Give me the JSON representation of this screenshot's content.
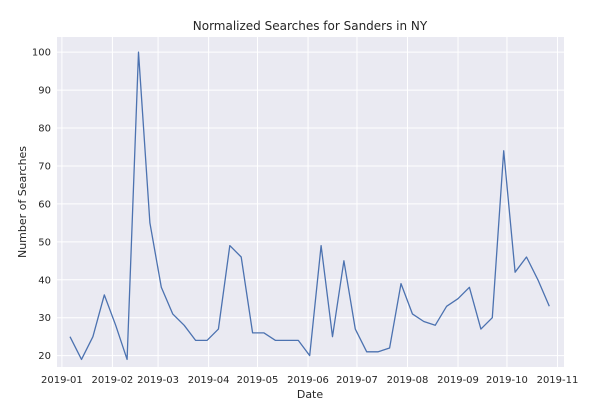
{
  "chart_data": {
    "type": "line",
    "title": "Normalized Searches for Sanders in NY",
    "xlabel": "Date",
    "ylabel": "Number of Searches",
    "ylim": [
      17,
      104
    ],
    "xlim": [
      "2018-12-29",
      "2019-11-05"
    ],
    "grid": true,
    "background": "#eaeaf2",
    "line_color": "#4c72b0",
    "y_ticks": [
      {
        "value": 20,
        "label": "20"
      },
      {
        "value": 30,
        "label": "30"
      },
      {
        "value": 40,
        "label": "40"
      },
      {
        "value": 50,
        "label": "50"
      },
      {
        "value": 60,
        "label": "60"
      },
      {
        "value": 70,
        "label": "70"
      },
      {
        "value": 80,
        "label": "80"
      },
      {
        "value": 90,
        "label": "90"
      },
      {
        "value": 100,
        "label": "100"
      }
    ],
    "x_ticks": [
      {
        "value": "2019-01-01",
        "label": "2019-01"
      },
      {
        "value": "2019-02-01",
        "label": "2019-02"
      },
      {
        "value": "2019-03-01",
        "label": "2019-03"
      },
      {
        "value": "2019-04-01",
        "label": "2019-04"
      },
      {
        "value": "2019-05-01",
        "label": "2019-05"
      },
      {
        "value": "2019-06-01",
        "label": "2019-06"
      },
      {
        "value": "2019-07-01",
        "label": "2019-07"
      },
      {
        "value": "2019-08-01",
        "label": "2019-08"
      },
      {
        "value": "2019-09-01",
        "label": "2019-09"
      },
      {
        "value": "2019-10-01",
        "label": "2019-10"
      },
      {
        "value": "2019-11-01",
        "label": "2019-11"
      }
    ],
    "x": [
      "2019-01-06",
      "2019-01-13",
      "2019-01-20",
      "2019-01-27",
      "2019-02-03",
      "2019-02-10",
      "2019-02-17",
      "2019-02-24",
      "2019-03-03",
      "2019-03-10",
      "2019-03-17",
      "2019-03-24",
      "2019-03-31",
      "2019-04-07",
      "2019-04-14",
      "2019-04-21",
      "2019-04-28",
      "2019-05-05",
      "2019-05-12",
      "2019-05-19",
      "2019-05-26",
      "2019-06-02",
      "2019-06-09",
      "2019-06-16",
      "2019-06-23",
      "2019-06-30",
      "2019-07-07",
      "2019-07-14",
      "2019-07-21",
      "2019-07-28",
      "2019-08-04",
      "2019-08-11",
      "2019-08-18",
      "2019-08-25",
      "2019-09-01",
      "2019-09-08",
      "2019-09-15",
      "2019-09-22",
      "2019-09-29",
      "2019-10-06",
      "2019-10-13",
      "2019-10-20",
      "2019-10-27"
    ],
    "y": [
      25,
      19,
      25,
      36,
      28,
      19,
      100,
      55,
      38,
      31,
      28,
      24,
      24,
      27,
      49,
      46,
      26,
      26,
      24,
      24,
      24,
      20,
      49,
      25,
      45,
      27,
      21,
      21,
      22,
      39,
      31,
      29,
      28,
      33,
      35,
      38,
      27,
      30,
      74,
      42,
      46,
      40,
      33
    ]
  }
}
